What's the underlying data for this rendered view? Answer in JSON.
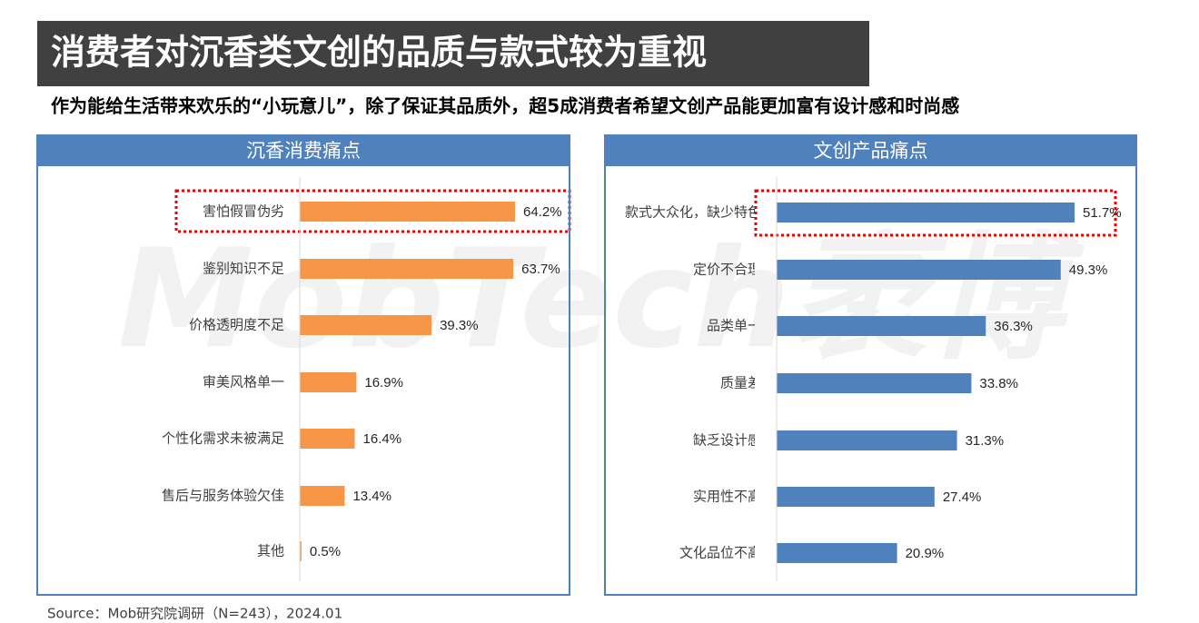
{
  "title": "消费者对沉香类文创的品质与款式较为重视",
  "subtitle": "作为能给生活带来欢乐的“小玩意儿”，除了保证其品质外，超5成消费者希望文创产品能更加富有设计感和时尚感",
  "source": "Source：Mob研究院调研（N=243），2024.01",
  "watermark": "MobTech袤博",
  "chart_data": [
    {
      "type": "bar",
      "orientation": "horizontal",
      "title": "沉香消费痛点",
      "color": "#f79646",
      "categories": [
        "害怕假冒伪劣",
        "鉴别知识不足",
        "价格透明度不足",
        "审美风格单一",
        "个性化需求未被满足",
        "售后与服务体验欠佳",
        "其他"
      ],
      "values": [
        64.2,
        63.7,
        39.3,
        16.9,
        16.4,
        13.4,
        0.5
      ],
      "value_labels": [
        "64.2%",
        "63.7%",
        "39.3%",
        "16.9%",
        "16.4%",
        "13.4%",
        "0.5%"
      ]
    },
    {
      "type": "bar",
      "orientation": "horizontal",
      "title": "文创产品痛点",
      "color": "#4f81bd",
      "categories": [
        "款式大众化，缺少特色",
        "定价不合理",
        "品类单一",
        "质量差",
        "缺乏设计感",
        "实用性不高",
        "文化品位不高"
      ],
      "values": [
        51.7,
        49.3,
        36.3,
        33.8,
        31.3,
        27.4,
        20.9
      ],
      "value_labels": [
        "51.7%",
        "49.3%",
        "36.3%",
        "33.8%",
        "31.3%",
        "27.4%",
        "20.9%"
      ]
    }
  ]
}
